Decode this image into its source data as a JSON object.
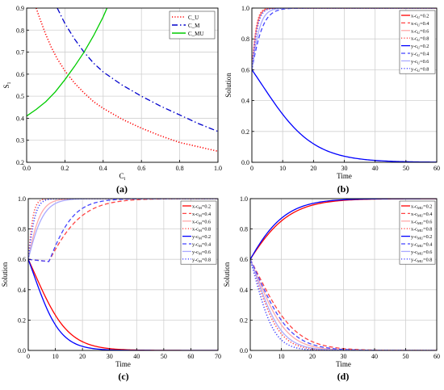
{
  "chart_data": [
    {
      "type": "line",
      "panel_label": "(a)",
      "xlabel": "C",
      "xlabel_sub": "i",
      "ylabel": "S",
      "ylabel_sub": "1",
      "xlim": [
        0,
        1.0
      ],
      "ylim": [
        0.2,
        0.9
      ],
      "x_ticks": [
        0.0,
        0.2,
        0.4,
        0.6,
        0.8,
        1.0
      ],
      "x_tick_labels": [
        "0.0",
        "0.2",
        "0.4",
        "0.6",
        "0.8",
        "1.0"
      ],
      "y_ticks": [
        0.2,
        0.3,
        0.4,
        0.5,
        0.6,
        0.7,
        0.8,
        0.9
      ],
      "y_tick_labels": [
        "0.2",
        "0.3",
        "0.4",
        "0.5",
        "0.6",
        "0.7",
        "0.8",
        "0.9"
      ],
      "grid": true,
      "legend_position": "top-right",
      "series": [
        {
          "name": "C_U",
          "color": "#ff0000",
          "dash": "dot",
          "x": [
            0.05,
            0.07,
            0.1,
            0.13,
            0.16,
            0.2,
            0.25,
            0.3,
            0.35,
            0.4,
            0.5,
            0.6,
            0.7,
            0.8,
            0.9,
            1.0
          ],
          "y": [
            0.9,
            0.85,
            0.78,
            0.72,
            0.67,
            0.615,
            0.56,
            0.515,
            0.475,
            0.445,
            0.395,
            0.355,
            0.32,
            0.29,
            0.27,
            0.25
          ]
        },
        {
          "name": "C_M",
          "color": "#0000cc",
          "dash": "dashdot",
          "x": [
            0.16,
            0.2,
            0.25,
            0.3,
            0.35,
            0.4,
            0.5,
            0.6,
            0.7,
            0.8,
            0.9,
            1.0
          ],
          "y": [
            0.9,
            0.83,
            0.76,
            0.7,
            0.65,
            0.61,
            0.55,
            0.5,
            0.455,
            0.415,
            0.375,
            0.34
          ]
        },
        {
          "name": "C_MU",
          "color": "#00cc00",
          "dash": "solid",
          "x": [
            0.0,
            0.05,
            0.1,
            0.15,
            0.2,
            0.25,
            0.3,
            0.35,
            0.4,
            0.42
          ],
          "y": [
            0.41,
            0.44,
            0.475,
            0.52,
            0.575,
            0.635,
            0.7,
            0.775,
            0.86,
            0.9
          ]
        }
      ]
    },
    {
      "type": "line",
      "panel_label": "(b)",
      "xlabel": "Time",
      "ylabel": "Solution",
      "xlim": [
        0,
        60
      ],
      "ylim": [
        0.0,
        1.0
      ],
      "x_ticks": [
        0,
        10,
        20,
        30,
        40,
        50,
        60
      ],
      "x_tick_labels": [
        "0",
        "10",
        "20",
        "30",
        "40",
        "50",
        "60"
      ],
      "y_ticks": [
        0.0,
        0.2,
        0.4,
        0.6,
        0.8,
        1.0
      ],
      "y_tick_labels": [
        "0.0",
        "0.2",
        "0.4",
        "0.6",
        "0.8",
        "1.0"
      ],
      "grid": true,
      "legend_position": "right",
      "legend_sub": "U",
      "series": [
        {
          "name": "x-c",
          "param": "=0.2",
          "color": "#ff0000",
          "dash": "solid",
          "type": "x",
          "k": 0.98
        },
        {
          "name": "x-c",
          "param": "=0.4",
          "color": "#ff4444",
          "dash": "dash",
          "type": "x",
          "k": 1.0
        },
        {
          "name": "x-c",
          "param": "=0.6",
          "color": "#ffaaaa",
          "dash": "solid",
          "type": "x",
          "k": 1.03
        },
        {
          "name": "x-c",
          "param": "=0.8",
          "color": "#ff4444",
          "dash": "dot",
          "type": "x",
          "k": 1.06
        },
        {
          "name": "y-c",
          "param": "=0.2",
          "color": "#0000ff",
          "dash": "solid",
          "type": "down",
          "k": 0.12
        },
        {
          "name": "y-c",
          "param": "=0.4",
          "color": "#4444ff",
          "dash": "dash",
          "type": "up",
          "k": 0.45
        },
        {
          "name": "y-c",
          "param": "=0.6",
          "color": "#aaaaff",
          "dash": "solid",
          "type": "up",
          "k": 0.6
        },
        {
          "name": "y-c",
          "param": "=0.8",
          "color": "#4444ff",
          "dash": "dot",
          "type": "up",
          "k": 0.85
        }
      ]
    },
    {
      "type": "line",
      "panel_label": "(c)",
      "xlabel": "Time",
      "ylabel": "Solution",
      "xlim": [
        0,
        70
      ],
      "ylim": [
        0.0,
        1.0
      ],
      "x_ticks": [
        0,
        10,
        20,
        30,
        40,
        50,
        60,
        70
      ],
      "x_tick_labels": [
        "0",
        "10",
        "20",
        "30",
        "40",
        "50",
        "60",
        "70"
      ],
      "y_ticks": [
        0.0,
        0.2,
        0.4,
        0.6,
        0.8,
        1.0
      ],
      "y_tick_labels": [
        "0.0",
        "0.2",
        "0.4",
        "0.6",
        "0.8",
        "1.0"
      ],
      "grid": true,
      "legend_position": "right",
      "legend_sub": "M",
      "series": [
        {
          "name": "x-c",
          "param": "=0.2",
          "color": "#ff0000",
          "dash": "solid",
          "type": "down",
          "k": 0.16
        },
        {
          "name": "x-c",
          "param": "=0.4",
          "color": "#ff4444",
          "dash": "dash",
          "type": "upslow",
          "k": 0.14
        },
        {
          "name": "x-c",
          "param": "=0.6",
          "color": "#ffaaaa",
          "dash": "solid",
          "type": "up",
          "k": 0.38
        },
        {
          "name": "x-c",
          "param": "=0.8",
          "color": "#ff4444",
          "dash": "dot",
          "type": "up",
          "k": 0.9
        },
        {
          "name": "y-c",
          "param": "=0.2",
          "color": "#0000ff",
          "dash": "solid",
          "type": "down",
          "k": 0.2
        },
        {
          "name": "y-c",
          "param": "=0.4",
          "color": "#4444ff",
          "dash": "dash",
          "type": "upslow",
          "k": 0.19
        },
        {
          "name": "y-c",
          "param": "=0.6",
          "color": "#aaaaff",
          "dash": "solid",
          "type": "up",
          "k": 0.3
        },
        {
          "name": "y-c",
          "param": "=0.8",
          "color": "#4444ff",
          "dash": "dot",
          "type": "up",
          "k": 0.65
        }
      ]
    },
    {
      "type": "line",
      "panel_label": "(d)",
      "xlabel": "Time",
      "ylabel": "Solution",
      "xlim": [
        0,
        60
      ],
      "ylim": [
        0.0,
        1.0
      ],
      "x_ticks": [
        0,
        10,
        20,
        30,
        40,
        50,
        60
      ],
      "x_tick_labels": [
        "0",
        "10",
        "20",
        "30",
        "40",
        "50",
        "60"
      ],
      "y_ticks": [
        0.0,
        0.2,
        0.4,
        0.6,
        0.8,
        1.0
      ],
      "y_tick_labels": [
        "0.0",
        "0.2",
        "0.4",
        "0.6",
        "0.8",
        "1.0"
      ],
      "grid": true,
      "legend_position": "right",
      "legend_sub": "MU",
      "series": [
        {
          "name": "x-c",
          "param": "=0.2",
          "color": "#ff0000",
          "dash": "solid",
          "type": "up",
          "k": 0.135
        },
        {
          "name": "x-c",
          "param": "=0.4",
          "color": "#ff4444",
          "dash": "dash",
          "type": "down",
          "k": 0.16
        },
        {
          "name": "x-c",
          "param": "=0.6",
          "color": "#ffaaaa",
          "dash": "solid",
          "type": "down",
          "k": 0.2
        },
        {
          "name": "x-c",
          "param": "=0.8",
          "color": "#ff4444",
          "dash": "dot",
          "type": "down",
          "k": 0.25
        },
        {
          "name": "y-c",
          "param": "=0.2",
          "color": "#0000ff",
          "dash": "solid",
          "type": "up",
          "k": 0.15
        },
        {
          "name": "y-c",
          "param": "=0.4",
          "color": "#4444ff",
          "dash": "dash",
          "type": "down",
          "k": 0.18
        },
        {
          "name": "y-c",
          "param": "=0.6",
          "color": "#aaaaff",
          "dash": "solid",
          "type": "down",
          "k": 0.23
        },
        {
          "name": "y-c",
          "param": "=0.8",
          "color": "#4444ff",
          "dash": "dot",
          "type": "down",
          "k": 0.3
        }
      ]
    }
  ]
}
